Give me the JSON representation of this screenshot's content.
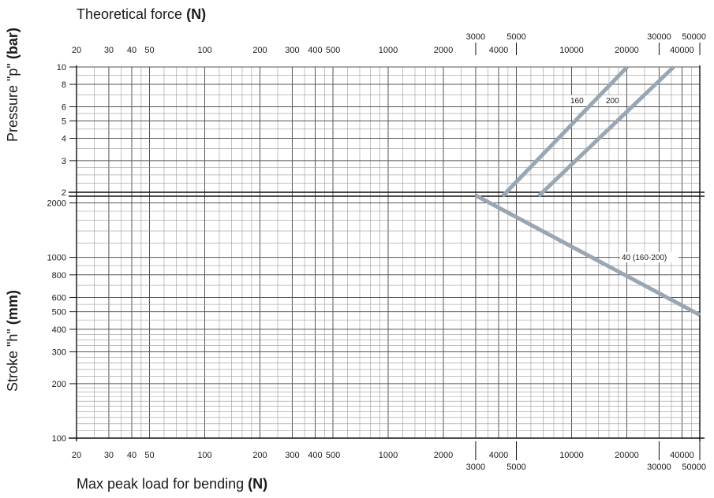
{
  "chart_data": [
    {
      "type": "line",
      "title": "Theoretical force",
      "title_unit": "(N)",
      "xlabel": "Theoretical force (N)",
      "ylabel": "Pressure \"p\"",
      "ylabel_unit": "(bar)",
      "x_scale": "log",
      "y_scale": "log",
      "xlim": [
        20,
        50000
      ],
      "ylim": [
        1.9,
        10
      ],
      "x_ticks": [
        "20",
        "30",
        "40",
        "50",
        "100",
        "200",
        "300",
        "400",
        "500",
        "1000",
        "2000",
        "3000",
        "4000",
        "5000",
        "10000",
        "20000",
        "30000",
        "40000",
        "50000"
      ],
      "y_ticks": [
        "2",
        "3",
        "4",
        "5",
        "6",
        "8",
        "10"
      ],
      "grid": true,
      "series": [
        {
          "name": "160",
          "x": [
            4200,
            20100
          ],
          "y": [
            1.9,
            10
          ]
        },
        {
          "name": "200",
          "x": [
            6600,
            36000
          ],
          "y": [
            1.9,
            10
          ]
        }
      ]
    },
    {
      "type": "line",
      "xlabel": "Max peak load for bending",
      "xlabel_unit": "(N)",
      "ylabel": "Stroke \"h\"",
      "ylabel_unit": "(mm)",
      "x_scale": "log",
      "y_scale": "log",
      "xlim": [
        20,
        50000
      ],
      "ylim": [
        100,
        2200
      ],
      "x_ticks": [
        "20",
        "30",
        "40",
        "50",
        "100",
        "200",
        "300",
        "400",
        "500",
        "1000",
        "2000",
        "3000",
        "4000",
        "5000",
        "10000",
        "20000",
        "30000",
        "40000",
        "50000"
      ],
      "y_ticks": [
        "100",
        "200",
        "300",
        "400",
        "500",
        "600",
        "800",
        "1000",
        "2000"
      ],
      "grid": true,
      "series": [
        {
          "name": "40 (160-200)",
          "x": [
            3000,
            50000
          ],
          "y": [
            2200,
            480
          ]
        }
      ]
    }
  ]
}
